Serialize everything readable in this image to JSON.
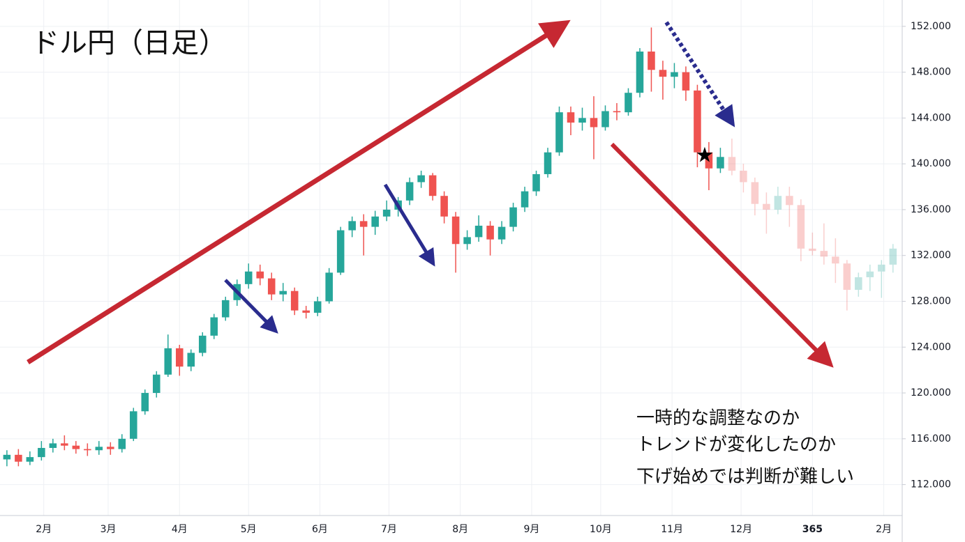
{
  "chart_data": {
    "type": "candlestick",
    "title": "ドル円（日足）",
    "annotation": [
      "一時的な調整なのか",
      "トレンドが変化したのか",
      "下げ始めでは判断が難しい"
    ],
    "up_color": "#26a69a",
    "down_color": "#ef5350",
    "faded_after": 327,
    "grid": true,
    "xlim": [
      12,
      404
    ],
    "xticks": [
      {
        "value": 31,
        "label": "2月"
      },
      {
        "value": 59,
        "label": "3月"
      },
      {
        "value": 90,
        "label": "4月"
      },
      {
        "value": 120,
        "label": "5月"
      },
      {
        "value": 151,
        "label": "6月"
      },
      {
        "value": 181,
        "label": "7月"
      },
      {
        "value": 212,
        "label": "8月"
      },
      {
        "value": 243,
        "label": "9月"
      },
      {
        "value": 273,
        "label": "10月"
      },
      {
        "value": 304,
        "label": "11月"
      },
      {
        "value": 334,
        "label": "12月"
      },
      365,
      {
        "value": 396,
        "label": "2月"
      }
    ],
    "ylim": [
      109.3,
      154.3
    ],
    "yticks": [
      {
        "value": 112,
        "label": "112.000"
      },
      {
        "value": 116,
        "label": "116.000"
      },
      {
        "value": 120,
        "label": "120.000"
      },
      {
        "value": 124,
        "label": "124.000"
      },
      {
        "value": 128,
        "label": "128.000"
      },
      {
        "value": 132,
        "label": "132.000"
      },
      {
        "value": 136,
        "label": "136.000"
      },
      {
        "value": 140,
        "label": "140.000"
      },
      {
        "value": 144,
        "label": "144.000"
      },
      {
        "value": 148,
        "label": "148.000"
      },
      {
        "value": 152,
        "label": "152.000"
      }
    ],
    "series": [
      {
        "x": [
          15,
          20,
          25,
          30,
          35,
          40,
          45,
          50,
          55,
          60,
          65,
          70,
          75,
          80,
          85,
          90,
          95,
          100,
          105,
          110,
          115,
          120,
          125,
          130,
          135,
          140,
          145,
          150,
          155,
          160,
          165,
          170,
          175,
          180,
          185,
          190,
          195,
          200,
          205,
          210,
          215,
          220,
          225,
          230,
          235,
          240,
          245,
          250,
          255,
          260,
          265,
          270,
          275,
          280,
          285,
          290,
          295,
          300,
          305,
          310,
          315,
          320,
          325,
          330,
          335,
          340,
          345,
          350,
          355,
          360,
          365,
          370,
          375,
          380,
          385,
          390,
          395,
          400
        ],
        "ohlc": [
          [
            114.2,
            115.0,
            113.6,
            114.6
          ],
          [
            114.6,
            115.1,
            113.6,
            114.0
          ],
          [
            114.0,
            114.9,
            113.7,
            114.4
          ],
          [
            114.4,
            115.8,
            114.1,
            115.2
          ],
          [
            115.2,
            116.0,
            114.8,
            115.6
          ],
          [
            115.6,
            116.3,
            115.0,
            115.4
          ],
          [
            115.4,
            115.8,
            114.7,
            115.1
          ],
          [
            115.1,
            115.6,
            114.5,
            115.0
          ],
          [
            115.0,
            115.8,
            114.6,
            115.3
          ],
          [
            115.3,
            115.7,
            114.6,
            115.1
          ],
          [
            115.1,
            116.4,
            114.8,
            116.0
          ],
          [
            116.0,
            118.7,
            115.8,
            118.4
          ],
          [
            118.4,
            120.3,
            118.1,
            120.0
          ],
          [
            120.0,
            121.9,
            119.6,
            121.6
          ],
          [
            121.6,
            125.1,
            121.4,
            123.9
          ],
          [
            123.9,
            124.2,
            121.5,
            122.3
          ],
          [
            122.3,
            123.8,
            121.9,
            123.5
          ],
          [
            123.5,
            125.3,
            123.2,
            125.0
          ],
          [
            125.0,
            126.9,
            124.7,
            126.6
          ],
          [
            126.6,
            128.4,
            126.3,
            128.1
          ],
          [
            128.1,
            129.9,
            127.6,
            129.5
          ],
          [
            129.5,
            131.3,
            129.1,
            130.6
          ],
          [
            130.6,
            131.2,
            129.4,
            130.0
          ],
          [
            130.0,
            130.5,
            128.1,
            128.6
          ],
          [
            128.6,
            129.6,
            128.0,
            128.9
          ],
          [
            128.9,
            129.2,
            126.8,
            127.2
          ],
          [
            127.2,
            127.6,
            126.5,
            127.0
          ],
          [
            127.0,
            128.4,
            126.7,
            128.0
          ],
          [
            128.0,
            130.9,
            127.8,
            130.5
          ],
          [
            130.5,
            134.5,
            130.3,
            134.2
          ],
          [
            134.2,
            135.4,
            133.6,
            135.0
          ],
          [
            135.0,
            135.6,
            132.0,
            134.5
          ],
          [
            134.5,
            135.9,
            133.8,
            135.4
          ],
          [
            135.4,
            136.8,
            135.0,
            136.0
          ],
          [
            136.0,
            137.1,
            135.4,
            136.8
          ],
          [
            136.8,
            138.8,
            136.4,
            138.4
          ],
          [
            138.4,
            139.4,
            137.9,
            139.0
          ],
          [
            139.0,
            139.2,
            136.8,
            137.2
          ],
          [
            137.2,
            137.6,
            134.8,
            135.4
          ],
          [
            135.4,
            135.8,
            130.5,
            133.0
          ],
          [
            133.0,
            134.2,
            132.5,
            133.6
          ],
          [
            133.6,
            135.5,
            133.2,
            134.6
          ],
          [
            134.6,
            135.0,
            132.0,
            133.4
          ],
          [
            133.4,
            135.0,
            133.0,
            134.5
          ],
          [
            134.5,
            136.6,
            134.1,
            136.2
          ],
          [
            136.2,
            138.0,
            135.8,
            137.6
          ],
          [
            137.6,
            139.4,
            137.2,
            139.1
          ],
          [
            139.1,
            141.4,
            138.8,
            141.0
          ],
          [
            141.0,
            145.0,
            140.7,
            144.5
          ],
          [
            144.5,
            145.0,
            142.5,
            143.6
          ],
          [
            143.6,
            144.9,
            142.9,
            144.0
          ],
          [
            144.0,
            145.9,
            140.4,
            143.2
          ],
          [
            143.2,
            145.1,
            142.9,
            144.6
          ],
          [
            144.6,
            145.3,
            143.8,
            144.5
          ],
          [
            144.5,
            146.6,
            144.2,
            146.2
          ],
          [
            146.2,
            150.1,
            145.8,
            149.8
          ],
          [
            149.8,
            151.9,
            146.3,
            148.2
          ],
          [
            148.2,
            149.0,
            145.6,
            147.6
          ],
          [
            147.6,
            148.8,
            146.6,
            148.0
          ],
          [
            148.0,
            148.5,
            145.5,
            146.4
          ],
          [
            146.4,
            146.9,
            139.7,
            141.0
          ],
          [
            141.0,
            141.9,
            137.7,
            139.6
          ],
          [
            139.6,
            141.4,
            139.2,
            140.6
          ],
          [
            140.6,
            142.2,
            139.0,
            139.4
          ],
          [
            139.4,
            140.0,
            137.5,
            138.4
          ],
          [
            138.4,
            138.8,
            135.5,
            136.5
          ],
          [
            136.5,
            137.5,
            133.9,
            136.0
          ],
          [
            136.0,
            138.0,
            135.6,
            137.2
          ],
          [
            137.2,
            138.0,
            134.5,
            136.4
          ],
          [
            136.4,
            136.9,
            131.5,
            132.6
          ],
          [
            132.6,
            134.0,
            132.0,
            132.4
          ],
          [
            132.4,
            134.8,
            131.2,
            131.9
          ],
          [
            131.9,
            133.5,
            129.6,
            131.3
          ],
          [
            131.3,
            131.6,
            127.2,
            129.0
          ],
          [
            129.0,
            130.5,
            128.4,
            130.1
          ],
          [
            130.1,
            131.2,
            128.9,
            130.6
          ],
          [
            130.6,
            131.6,
            128.3,
            131.2
          ],
          [
            131.2,
            133.0,
            130.5,
            132.6
          ]
        ]
      }
    ]
  }
}
